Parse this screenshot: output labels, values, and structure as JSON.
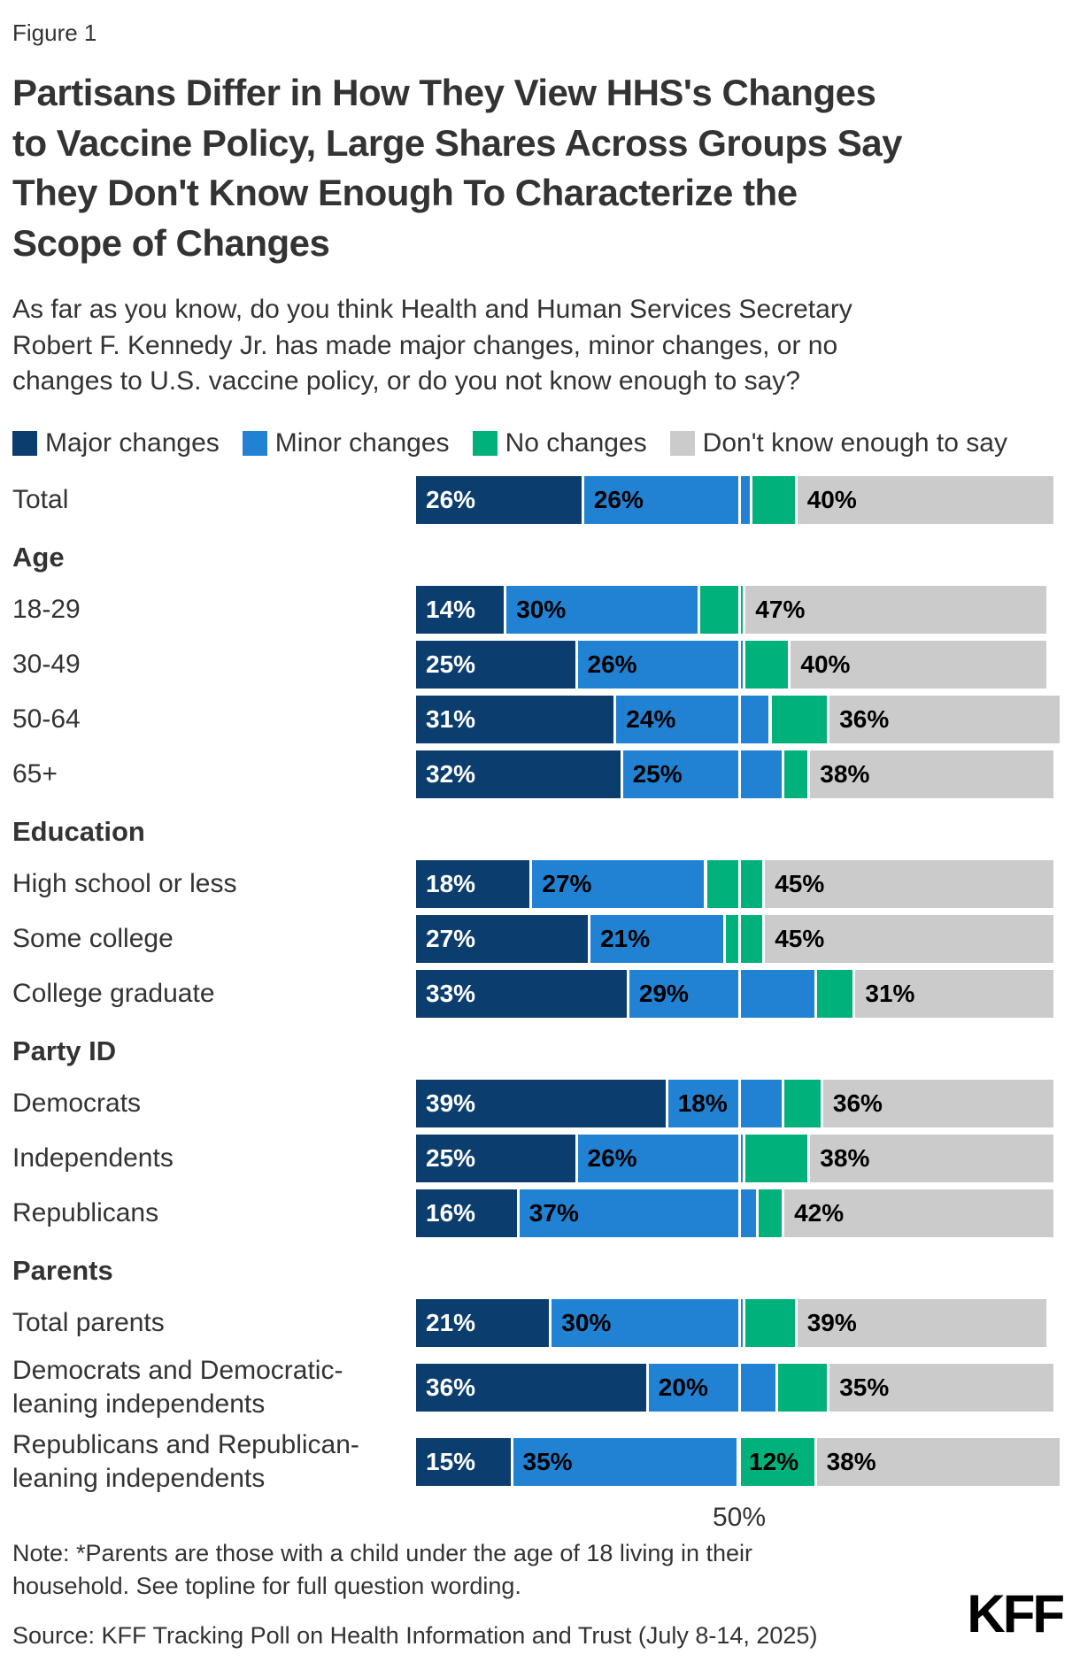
{
  "figure_label": "Figure 1",
  "title": "Partisans Differ in How They View HHS's Changes to Vaccine Policy, Large Shares Across Groups Say They Don't Know Enough To Characterize the Scope of Changes",
  "description": "As far as you know, do you think Health and Human Services Secretary Robert F. Kennedy Jr. has made major changes, minor changes, or no changes to U.S. vaccine policy, or do you not know enough to say?",
  "colors": {
    "major": "#0b3d6e",
    "minor": "#2182d4",
    "none": "#00b17c",
    "dk": "#cbcbcb"
  },
  "chart_data": {
    "type": "bar",
    "orientation": "horizontal",
    "stacked": true,
    "x_max": 100,
    "gridline": {
      "value": 50,
      "label": "50%"
    },
    "legend": [
      {
        "name": "Major changes",
        "color_key": "major"
      },
      {
        "name": "Minor changes",
        "color_key": "minor"
      },
      {
        "name": "No changes",
        "color_key": "none"
      },
      {
        "name": "Don't know enough to say",
        "color_key": "dk"
      }
    ],
    "groups": [
      {
        "header": "",
        "rows": [
          {
            "label": "Total",
            "values": [
              26,
              26,
              7,
              40
            ],
            "labels": [
              "26%",
              "26%",
              "",
              "40%"
            ]
          }
        ]
      },
      {
        "header": "Age",
        "rows": [
          {
            "label": "18-29",
            "values": [
              14,
              30,
              7,
              47
            ],
            "labels": [
              "14%",
              "30%",
              "",
              "47%"
            ]
          },
          {
            "label": "30-49",
            "values": [
              25,
              26,
              7,
              40
            ],
            "labels": [
              "25%",
              "26%",
              "",
              "40%"
            ]
          },
          {
            "label": "50-64",
            "values": [
              31,
              24,
              9,
              36
            ],
            "labels": [
              "31%",
              "24%",
              "",
              "36%"
            ]
          },
          {
            "label": "65+",
            "values": [
              32,
              25,
              4,
              38
            ],
            "labels": [
              "32%",
              "25%",
              "",
              "38%"
            ]
          }
        ]
      },
      {
        "header": "Education",
        "rows": [
          {
            "label": "High school or less",
            "values": [
              18,
              27,
              9,
              45
            ],
            "labels": [
              "18%",
              "27%",
              "",
              "45%"
            ]
          },
          {
            "label": "Some college",
            "values": [
              27,
              21,
              6,
              45
            ],
            "labels": [
              "27%",
              "21%",
              "",
              "45%"
            ]
          },
          {
            "label": "College graduate",
            "values": [
              33,
              29,
              6,
              31
            ],
            "labels": [
              "33%",
              "29%",
              "",
              "31%"
            ]
          }
        ]
      },
      {
        "header": "Party ID",
        "rows": [
          {
            "label": "Democrats",
            "values": [
              39,
              18,
              6,
              36
            ],
            "labels": [
              "39%",
              "18%",
              "",
              "36%"
            ]
          },
          {
            "label": "Independents",
            "values": [
              25,
              26,
              10,
              38
            ],
            "labels": [
              "25%",
              "26%",
              "",
              "38%"
            ]
          },
          {
            "label": "Republicans",
            "values": [
              16,
              37,
              4,
              42
            ],
            "labels": [
              "16%",
              "37%",
              "",
              "42%"
            ]
          }
        ]
      },
      {
        "header": "Parents",
        "rows": [
          {
            "label": "Total parents",
            "values": [
              21,
              30,
              8,
              39
            ],
            "labels": [
              "21%",
              "30%",
              "",
              "39%"
            ]
          },
          {
            "label": "Democrats and Democratic-leaning independents",
            "values": [
              36,
              20,
              8,
              35
            ],
            "labels": [
              "36%",
              "20%",
              "",
              "35%"
            ]
          },
          {
            "label": "Republicans and Republican-leaning independents",
            "values": [
              15,
              35,
              12,
              38
            ],
            "labels": [
              "15%",
              "35%",
              "12%",
              "38%"
            ]
          }
        ]
      }
    ]
  },
  "axis": {
    "tick_label": "50%"
  },
  "footer": {
    "note": "Note: *Parents are those with a child under the age of 18 living in their household. See topline for full question wording.",
    "source": "Source: KFF Tracking Poll on Health Information and Trust (July 8-14, 2025)",
    "logo": "KFF"
  }
}
